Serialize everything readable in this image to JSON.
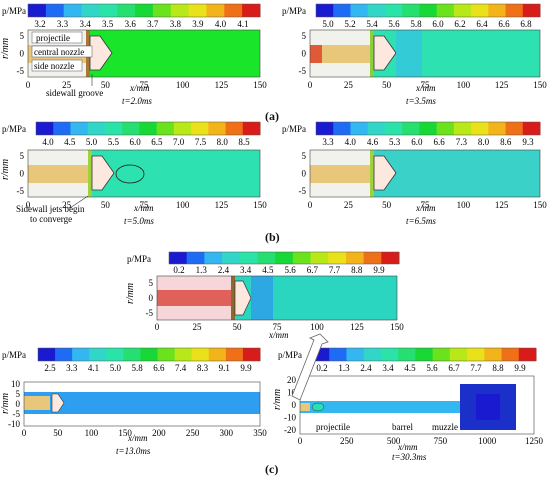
{
  "colorbar_colors": [
    "#1a1ad0",
    "#1e6cf5",
    "#33b7f0",
    "#32d6c8",
    "#2ae3a8",
    "#25e070",
    "#18d838",
    "#6ae21c",
    "#b8e818",
    "#e9e21a",
    "#f3b41a",
    "#f07018",
    "#d81c1a"
  ],
  "panels": [
    {
      "id": "a1",
      "unit": "p/MPa",
      "ticks": [
        "3.2",
        "3.3",
        "3.4",
        "3.5",
        "3.6",
        "3.7",
        "3.8",
        "3.9",
        "4.0",
        "4.1"
      ],
      "ylabel": "r/mm",
      "yticks": [
        "5",
        "0",
        "-5"
      ],
      "xticks": [
        "0",
        "25",
        "50",
        "75",
        "100",
        "125",
        "150"
      ],
      "xlabel": "x/mm",
      "time": "t=2.0ms",
      "annotations": [
        "projectile",
        "central nozzle",
        "side nozzle",
        "sidewall groove"
      ]
    },
    {
      "id": "a2",
      "unit": "p/MPa",
      "ticks": [
        "5.0",
        "5.2",
        "5.4",
        "5.6",
        "5.8",
        "6.0",
        "6.2",
        "6.4",
        "6.6",
        "6.8"
      ],
      "yticks": [
        "5",
        "0",
        "-5"
      ],
      "xticks": [
        "0",
        "25",
        "50",
        "75",
        "100",
        "125",
        "150"
      ],
      "xlabel": "x/mm",
      "time": "t=3.5ms"
    },
    {
      "id": "b1",
      "unit": "p/MPa",
      "ticks": [
        "4.0",
        "4.5",
        "5.0",
        "5.5",
        "6.0",
        "6.5",
        "7.0",
        "7.5",
        "8.0",
        "8.5"
      ],
      "ylabel": "r/mm",
      "yticks": [
        "5",
        "0",
        "-5"
      ],
      "xticks": [
        "0",
        "25",
        "50",
        "75",
        "100",
        "125",
        "150"
      ],
      "xlabel": "x/mm",
      "time": "t=5.0ms",
      "annotations": [
        "Sidewall jets begin",
        "to converge"
      ]
    },
    {
      "id": "b2",
      "unit": "p/MPa",
      "ticks": [
        "3.3",
        "4.0",
        "4.6",
        "5.3",
        "6.0",
        "6.6",
        "7.3",
        "8.0",
        "8.6",
        "9.3"
      ],
      "yticks": [
        "5",
        "0",
        "-5"
      ],
      "xticks": [
        "0",
        "25",
        "50",
        "75",
        "100",
        "125",
        "150"
      ],
      "xlabel": "x/mm",
      "time": "t=6.5ms"
    },
    {
      "id": "c1",
      "unit": "p/MPa",
      "ticks": [
        "0.2",
        "1.3",
        "2.4",
        "3.4",
        "4.5",
        "5.6",
        "6.7",
        "7.7",
        "8.8",
        "9.9"
      ],
      "ylabel": "r/mm",
      "yticks": [
        "5",
        "0",
        "-5"
      ],
      "xticks": [
        "0",
        "25",
        "50",
        "75",
        "100",
        "125",
        "150"
      ],
      "xlabel": "x/mm"
    },
    {
      "id": "c2",
      "unit": "p/MPa",
      "ticks": [
        "2.5",
        "3.3",
        "4.1",
        "5.0",
        "5.8",
        "6.6",
        "7.4",
        "8.3",
        "9.1",
        "9.9"
      ],
      "ylabel": "r/mm",
      "yticks": [
        "10",
        "5",
        "0",
        "-5",
        "-10"
      ],
      "xticks": [
        "0",
        "50",
        "100",
        "150",
        "200",
        "250",
        "300",
        "350"
      ],
      "xlabel": "x/mm",
      "time": "t=13.0ms"
    },
    {
      "id": "c3",
      "unit": "p/MPa",
      "ticks": [
        "0.2",
        "1.3",
        "2.4",
        "3.4",
        "4.5",
        "5.6",
        "6.7",
        "7.7",
        "8.8",
        "9.9"
      ],
      "ylabel": "r/mm",
      "yticks": [
        "20",
        "10",
        "0",
        "-10",
        "-20"
      ],
      "xticks": [
        "0",
        "250",
        "500",
        "750",
        "1000",
        "1250"
      ],
      "xlabel": "x/mm",
      "time": "t=30.3ms",
      "annotations": [
        "projectile",
        "barrel",
        "muzzle"
      ]
    }
  ],
  "captions": [
    "(a)",
    "(b)",
    "(c)"
  ]
}
